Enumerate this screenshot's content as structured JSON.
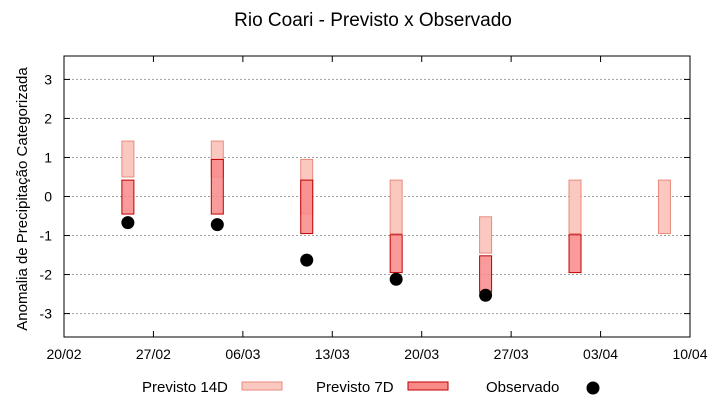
{
  "chart_data": {
    "type": "range-bar",
    "title": "Rio Coari - Previsto x Observado",
    "xlabel": "",
    "ylabel": "Anomalia de Precipitação Categorizada",
    "ylim": [
      -3.6,
      3.6
    ],
    "yticks": [
      -3,
      -2,
      -1,
      0,
      1,
      2,
      3
    ],
    "xlim": [
      "2015-02-20",
      "2015-04-10"
    ],
    "xticks": [
      "20/02",
      "27/02",
      "06/03",
      "13/03",
      "20/03",
      "27/03",
      "03/04",
      "10/04"
    ],
    "grid": "horizontal dotted",
    "legend_position": "bottom",
    "series": [
      {
        "name": "Previsto 14D",
        "color_fill": "#fbc8c0",
        "color_stroke": "#e88a7e",
        "points": [
          {
            "x": "2015-02-25",
            "low": 0.5,
            "high": 1.42
          },
          {
            "x": "2015-03-04",
            "low": 0.5,
            "high": 1.42
          },
          {
            "x": "2015-03-11",
            "low": -0.45,
            "high": 0.95
          },
          {
            "x": "2015-03-18",
            "low": -0.95,
            "high": 0.42
          },
          {
            "x": "2015-03-25",
            "low": -1.45,
            "high": -0.52
          },
          {
            "x": "2015-04-01",
            "low": -0.95,
            "high": 0.42
          },
          {
            "x": "2015-04-08",
            "low": -0.95,
            "high": 0.42
          }
        ]
      },
      {
        "name": "Previsto 7D",
        "color_fill": "#f88a88",
        "color_stroke": "#c00000",
        "points": [
          {
            "x": "2015-02-25",
            "low": -0.45,
            "high": 0.42
          },
          {
            "x": "2015-03-04",
            "low": -0.45,
            "high": 0.95
          },
          {
            "x": "2015-03-11",
            "low": -0.95,
            "high": 0.42
          },
          {
            "x": "2015-03-18",
            "low": -1.95,
            "high": -0.98
          },
          {
            "x": "2015-03-25",
            "low": -2.45,
            "high": -1.52
          },
          {
            "x": "2015-04-01",
            "low": -1.95,
            "high": -0.98
          }
        ]
      },
      {
        "name": "Observado",
        "color": "#000000",
        "points": [
          {
            "x": "2015-02-25",
            "y": -0.67
          },
          {
            "x": "2015-03-04",
            "y": -0.72
          },
          {
            "x": "2015-03-11",
            "y": -1.63
          },
          {
            "x": "2015-03-18",
            "y": -2.12
          },
          {
            "x": "2015-03-25",
            "y": -2.53
          }
        ]
      }
    ]
  }
}
